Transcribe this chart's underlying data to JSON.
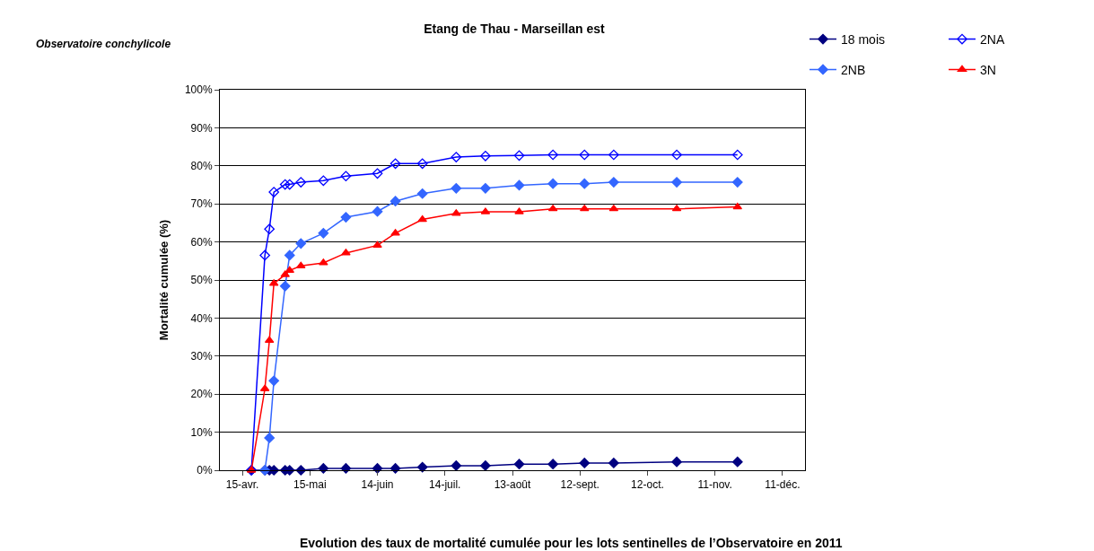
{
  "chart_data": {
    "type": "line",
    "title": "Etang de Thau - Marseillan est",
    "ylabel": "Mortalité cumulée (%)",
    "annotations": [
      "Observatoire conchylicole",
      "Evolution des taux de mortalité cumulée pour les lots sentinelles de l’Observatoire en 2011"
    ],
    "x": [
      "2011-04-19",
      "2011-04-25",
      "2011-04-27",
      "2011-04-29",
      "2011-05-04",
      "2011-05-06",
      "2011-05-11",
      "2011-05-21",
      "2011-05-31",
      "2011-06-14",
      "2011-06-22",
      "2011-07-04",
      "2011-07-19",
      "2011-08-01",
      "2011-08-16",
      "2011-08-31",
      "2011-09-14",
      "2011-09-27",
      "2011-10-25",
      "2011-11-21"
    ],
    "series": [
      {
        "name": "18 mois",
        "color": "#000080",
        "marker": "diamond",
        "values": [
          0,
          0,
          0,
          0,
          0,
          0,
          0,
          0.5,
          0.5,
          0.5,
          0.5,
          0.8,
          1.2,
          1.2,
          1.6,
          1.6,
          1.9,
          1.9,
          2.2,
          2.2
        ]
      },
      {
        "name": "2NA",
        "color": "#0000ff",
        "marker": "diamond-open",
        "values": [
          0,
          56.5,
          63.4,
          73.1,
          75.1,
          75.1,
          75.7,
          76.1,
          77.3,
          78.0,
          80.6,
          80.6,
          82.3,
          82.6,
          82.7,
          82.9,
          82.9,
          82.9,
          82.9,
          82.9
        ]
      },
      {
        "name": "2NB",
        "color": "#3366ff",
        "marker": "diamond",
        "values": [
          null,
          0,
          8.5,
          23.5,
          48.4,
          56.5,
          59.6,
          62.3,
          66.5,
          68.0,
          70.7,
          72.7,
          74.1,
          74.1,
          74.9,
          75.3,
          75.3,
          75.7,
          75.7,
          75.7
        ]
      },
      {
        "name": "3N",
        "color": "#ff0000",
        "marker": "triangle",
        "values": [
          0,
          21.4,
          34.1,
          49.1,
          51.4,
          52.5,
          53.7,
          54.5,
          57.1,
          59.1,
          62.3,
          65.9,
          67.5,
          67.9,
          67.9,
          68.7,
          68.7,
          68.7,
          68.7,
          69.2
        ]
      }
    ],
    "xlim": [
      "2011-04-05",
      "2011-12-21"
    ],
    "xticks": [
      {
        "value": "2011-04-15",
        "label": "15-avr."
      },
      {
        "value": "2011-05-15",
        "label": "15-mai"
      },
      {
        "value": "2011-06-14",
        "label": "14-juin"
      },
      {
        "value": "2011-07-14",
        "label": "14-juil."
      },
      {
        "value": "2011-08-13",
        "label": "13-août"
      },
      {
        "value": "2011-09-12",
        "label": "12-sept."
      },
      {
        "value": "2011-10-12",
        "label": "12-oct."
      },
      {
        "value": "2011-11-11",
        "label": "11-nov."
      },
      {
        "value": "2011-12-11",
        "label": "11-déc."
      }
    ],
    "ylim": [
      0,
      100
    ],
    "yticks": [
      {
        "value": 0,
        "label": "0%"
      },
      {
        "value": 10,
        "label": "10%"
      },
      {
        "value": 20,
        "label": "20%"
      },
      {
        "value": 30,
        "label": "30%"
      },
      {
        "value": 40,
        "label": "40%"
      },
      {
        "value": 50,
        "label": "50%"
      },
      {
        "value": 60,
        "label": "60%"
      },
      {
        "value": 70,
        "label": "70%"
      },
      {
        "value": 80,
        "label": "80%"
      },
      {
        "value": 90,
        "label": "90%"
      },
      {
        "value": 100,
        "label": "100%"
      }
    ],
    "grid": "y",
    "legend": "top right",
    "line_style": "solid"
  }
}
